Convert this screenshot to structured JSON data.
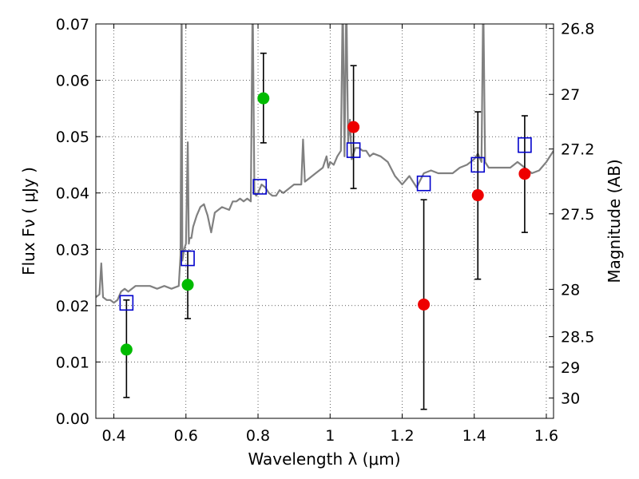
{
  "chart_data": {
    "type": "scatter",
    "title": "",
    "xlabel": "Wavelength  λ (μm)",
    "ylabel": "Flux  Fν  ( μJy )",
    "y2label": "Magnitude (AB)",
    "xlim": [
      0.35,
      1.62
    ],
    "ylim": [
      0.0,
      0.07
    ],
    "grid": true,
    "legend": "none",
    "x_ticks": [
      0.4,
      0.6,
      0.8,
      1.0,
      1.2,
      1.4,
      1.6
    ],
    "x_tick_labels": [
      "0.4",
      "0.6",
      "0.8",
      "1",
      "1.2",
      "1.4",
      "1.6"
    ],
    "y_ticks": [
      0.0,
      0.01,
      0.02,
      0.03,
      0.04,
      0.05,
      0.06,
      0.07
    ],
    "y_tick_labels": [
      "0.00",
      "0.01",
      "0.02",
      "0.03",
      "0.04",
      "0.05",
      "0.06",
      "0.07"
    ],
    "mag_ticks": [
      {
        "label": "26.8",
        "flux": 0.0692
      },
      {
        "label": "27",
        "flux": 0.0575
      },
      {
        "label": "27.2",
        "flux": 0.0478
      },
      {
        "label": "27.5",
        "flux": 0.0363
      },
      {
        "label": "28",
        "flux": 0.0229
      },
      {
        "label": "28.5",
        "flux": 0.0145
      },
      {
        "label": "29",
        "flux": 0.0091
      },
      {
        "label": "30",
        "flux": 0.0036
      }
    ],
    "series": [
      {
        "kind": "line",
        "color": "#808080",
        "x": [
          0.35,
          0.36,
          0.365,
          0.37,
          0.38,
          0.39,
          0.4,
          0.41,
          0.42,
          0.43,
          0.44,
          0.45,
          0.46,
          0.48,
          0.5,
          0.52,
          0.54,
          0.56,
          0.58,
          0.585,
          0.588,
          0.59,
          0.595,
          0.6,
          0.605,
          0.608,
          0.61,
          0.615,
          0.62,
          0.63,
          0.64,
          0.65,
          0.655,
          0.66,
          0.67,
          0.68,
          0.7,
          0.72,
          0.73,
          0.74,
          0.75,
          0.76,
          0.77,
          0.78,
          0.785,
          0.79,
          0.795,
          0.8,
          0.81,
          0.82,
          0.83,
          0.84,
          0.85,
          0.86,
          0.87,
          0.88,
          0.9,
          0.92,
          0.925,
          0.93,
          0.94,
          0.96,
          0.98,
          0.99,
          0.995,
          1.0,
          1.01,
          1.02,
          1.03,
          1.035,
          1.04,
          1.045,
          1.05,
          1.055,
          1.06,
          1.065,
          1.07,
          1.08,
          1.09,
          1.1,
          1.11,
          1.12,
          1.14,
          1.16,
          1.18,
          1.2,
          1.22,
          1.24,
          1.26,
          1.28,
          1.3,
          1.32,
          1.34,
          1.36,
          1.38,
          1.4,
          1.41,
          1.42,
          1.425,
          1.43,
          1.44,
          1.46,
          1.48,
          1.5,
          1.52,
          1.54,
          1.56,
          1.58,
          1.6,
          1.62
        ],
        "y": [
          0.0215,
          0.022,
          0.0275,
          0.0215,
          0.021,
          0.021,
          0.0205,
          0.021,
          0.0225,
          0.023,
          0.0225,
          0.023,
          0.0235,
          0.0235,
          0.0235,
          0.023,
          0.0235,
          0.023,
          0.0235,
          0.029,
          0.075,
          0.028,
          0.03,
          0.031,
          0.049,
          0.031,
          0.032,
          0.032,
          0.034,
          0.036,
          0.0375,
          0.038,
          0.037,
          0.036,
          0.033,
          0.0365,
          0.0375,
          0.037,
          0.0385,
          0.0385,
          0.039,
          0.0385,
          0.039,
          0.0385,
          0.075,
          0.04,
          0.0395,
          0.04,
          0.0415,
          0.041,
          0.04,
          0.0395,
          0.0395,
          0.0405,
          0.04,
          0.0405,
          0.0415,
          0.0415,
          0.0495,
          0.042,
          0.0425,
          0.0435,
          0.0445,
          0.0465,
          0.0445,
          0.0455,
          0.045,
          0.0465,
          0.0475,
          0.075,
          0.0465,
          0.075,
          0.049,
          0.053,
          0.046,
          0.047,
          0.048,
          0.048,
          0.0475,
          0.0475,
          0.0465,
          0.047,
          0.0465,
          0.0455,
          0.043,
          0.0415,
          0.043,
          0.041,
          0.0435,
          0.044,
          0.0435,
          0.0435,
          0.0435,
          0.0445,
          0.045,
          0.046,
          0.047,
          0.0455,
          0.075,
          0.0455,
          0.0445,
          0.0445,
          0.0445,
          0.0445,
          0.0455,
          0.0445,
          0.0435,
          0.044,
          0.0455,
          0.0475
        ]
      },
      {
        "kind": "points",
        "marker": "open-square",
        "color": "#0000cc",
        "x": [
          0.435,
          0.605,
          0.805,
          1.065,
          1.26,
          1.41,
          1.54
        ],
        "y": [
          0.0205,
          0.0284,
          0.0411,
          0.0476,
          0.0417,
          0.045,
          0.0485
        ]
      },
      {
        "kind": "points",
        "marker": "filled-circle",
        "color": "#00bb00",
        "x": [
          0.435,
          0.605,
          0.815
        ],
        "y": [
          0.0122,
          0.0237,
          0.0568
        ],
        "yerr_low": [
          0.0037,
          0.0177,
          0.0489
        ],
        "yerr_high": [
          0.021,
          0.0297,
          0.0648
        ]
      },
      {
        "kind": "points",
        "marker": "filled-circle",
        "color": "#ee0000",
        "x": [
          1.065,
          1.26,
          1.41,
          1.54
        ],
        "y": [
          0.0517,
          0.0202,
          0.0396,
          0.0434
        ],
        "yerr_low": [
          0.0408,
          0.0016,
          0.0247,
          0.033
        ],
        "yerr_high": [
          0.0626,
          0.0388,
          0.0544,
          0.0537
        ]
      }
    ]
  }
}
